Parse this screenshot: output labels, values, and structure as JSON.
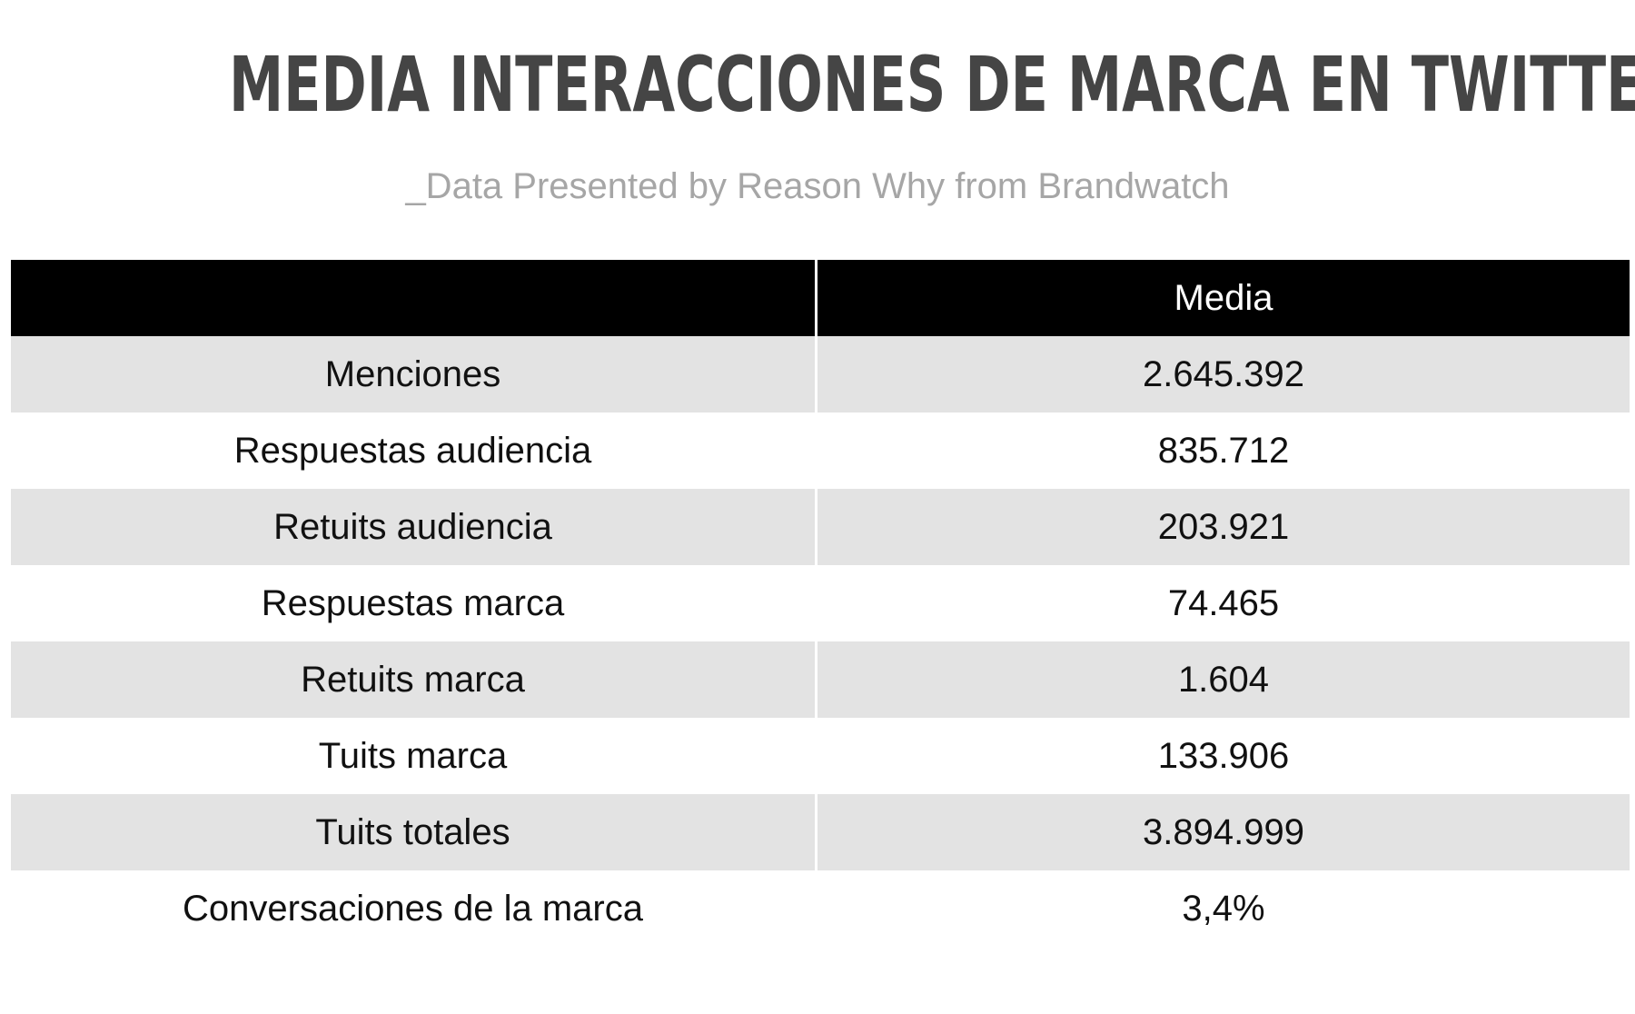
{
  "title": "MEDIA INTERACCIONES DE MARCA EN TWITTER",
  "subtitle": "_Data Presented by Reason Why from Brandwatch",
  "chart_data": {
    "type": "table",
    "title": "MEDIA INTERACCIONES DE MARCA EN TWITTER",
    "subtitle": "_Data Presented by Reason Why from Brandwatch",
    "columns": [
      "",
      "Media"
    ],
    "rows": [
      {
        "label": "Menciones",
        "value": "2.645.392"
      },
      {
        "label": "Respuestas audiencia",
        "value": "835.712"
      },
      {
        "label": "Retuits audiencia",
        "value": "203.921"
      },
      {
        "label": "Respuestas marca",
        "value": "74.465"
      },
      {
        "label": "Retuits marca",
        "value": "1.604"
      },
      {
        "label": "Tuits marca",
        "value": "133.906"
      },
      {
        "label": "Tuits totales",
        "value": "3.894.999"
      },
      {
        "label": "Conversaciones de la marca",
        "value": "3,4%"
      }
    ]
  },
  "colors": {
    "header_bg": "#000000",
    "header_text": "#ffffff",
    "stripe_bg": "#e3e3e3",
    "title_text": "#454545",
    "subtitle_text": "#a6a6a6"
  }
}
